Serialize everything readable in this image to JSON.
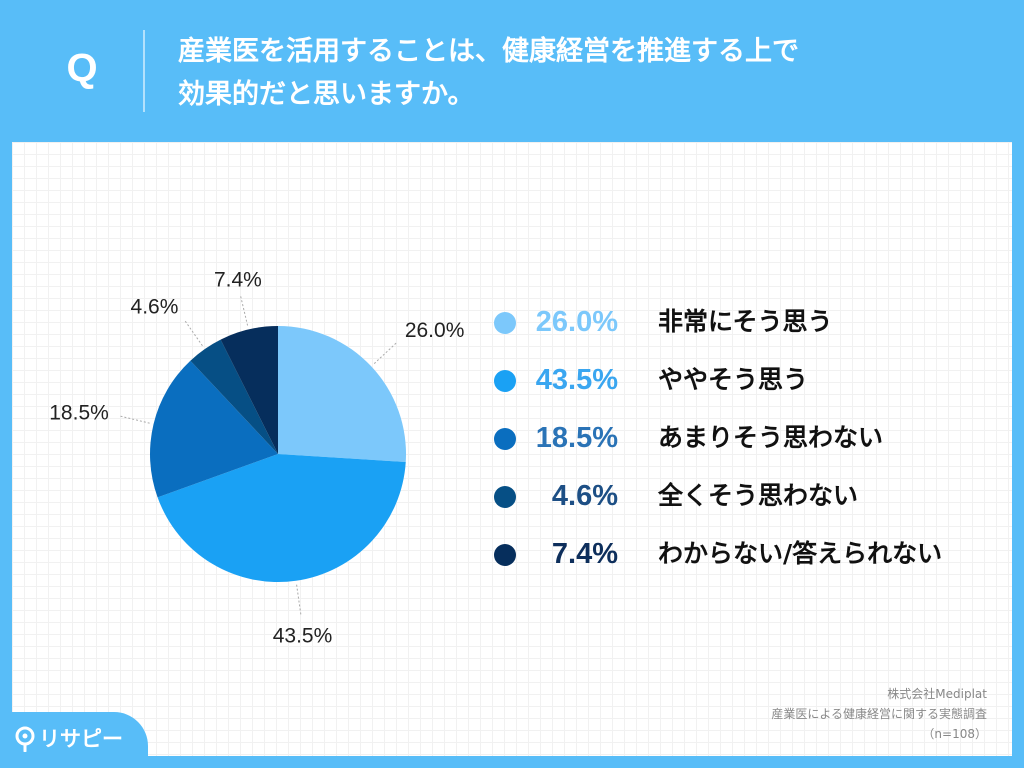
{
  "question": {
    "mark": "Q",
    "line1": "産業医を活用することは、健康経営を推進する上で",
    "line2": "効果的だと思いますか。"
  },
  "chart_data": {
    "type": "pie",
    "title": "",
    "slices": [
      {
        "label": "非常にそう思う",
        "value": 26.0,
        "value_label": "26.0%",
        "color": "#7cc8fb"
      },
      {
        "label": "ややそう思う",
        "value": 43.5,
        "value_label": "43.5%",
        "color": "#1aa1f4"
      },
      {
        "label": "あまりそう思わない",
        "value": 18.5,
        "value_label": "18.5%",
        "color": "#0a6ebf"
      },
      {
        "label": "全くそう思わない",
        "value": 4.6,
        "value_label": "4.6%",
        "color": "#064f85"
      },
      {
        "label": "わからない/答えられない",
        "value": 7.4,
        "value_label": "7.4%",
        "color": "#062e5c"
      }
    ],
    "legend": {
      "placement": "right",
      "pct_colors": [
        "#7cc8fb",
        "#3aa6f0",
        "#2a73b6",
        "#1d4f85",
        "#0e2f5c"
      ]
    }
  },
  "footnote": {
    "company": "株式会社Mediplat",
    "survey": "産業医による健康経営に関する実態調査",
    "sample": "（n=108）"
  },
  "logo": {
    "text": "リサピー"
  }
}
